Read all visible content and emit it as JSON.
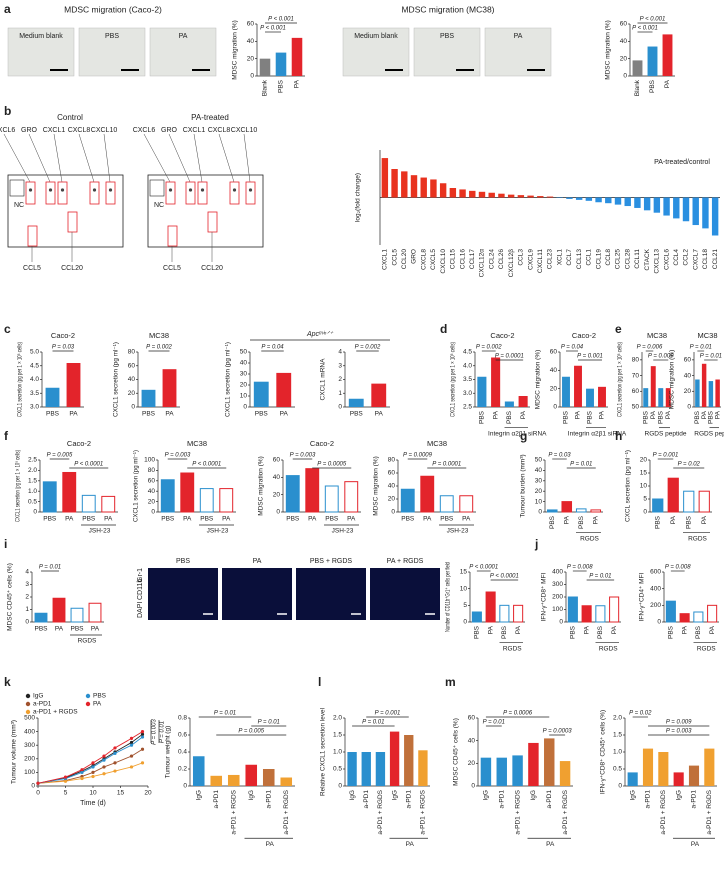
{
  "panel_labels": [
    "a",
    "b",
    "c",
    "d",
    "e",
    "f",
    "g",
    "h",
    "i",
    "j",
    "k",
    "l",
    "m"
  ],
  "images": {
    "a_titles": [
      "MDSC migration (Caco-2)",
      "MDSC migration (MC38)"
    ],
    "a_labels": [
      "Medium blank",
      "PBS",
      "PA",
      "Medium blank",
      "PBS",
      "PA"
    ],
    "b_titles": [
      "Control",
      "PA-treated"
    ],
    "b_labels": [
      "CXCL6",
      "GRO",
      "CXCL1",
      "CXCL8",
      "CXCL10"
    ],
    "b_nc": "NC",
    "b_bottom": [
      "CCL5",
      "CCL20"
    ],
    "i_labels": [
      "PBS",
      "PA",
      "PBS + RGDS",
      "PA + RGDS"
    ],
    "i_stain": [
      "DAPI",
      "CD11b",
      "Gr-1"
    ]
  },
  "chart_data": [
    {
      "type": "bar",
      "ylabel": "MDSC migration (%)",
      "categories": [
        "Blank",
        "PBS",
        "PA"
      ],
      "values": [
        20,
        27,
        44
      ],
      "colors": [
        "#808080",
        "#2a8fce",
        "#e3242b"
      ],
      "ylim": [
        0,
        60
      ],
      "yticks": [
        0,
        20,
        40,
        60
      ],
      "annotations": [
        "P < 0.001",
        "P < 0.001"
      ]
    },
    {
      "type": "bar",
      "ylabel": "MDSC migration (%)",
      "categories": [
        "Blank",
        "PBS",
        "PA"
      ],
      "values": [
        18,
        34,
        48
      ],
      "colors": [
        "#808080",
        "#2a8fce",
        "#e3242b"
      ],
      "ylim": [
        0,
        60
      ],
      "yticks": [
        0,
        20,
        40,
        60
      ],
      "annotations": [
        "P < 0.001",
        "P < 0.001"
      ]
    },
    {
      "type": "bar",
      "ylabel": "log₂(fold change)",
      "note": "PA-treated/control",
      "categories": [
        "CXCL1",
        "CCL5",
        "CCL20",
        "GRO",
        "CXCL8",
        "CXCL5",
        "CXCL10",
        "CCL15",
        "CCL16",
        "CCL17",
        "CXCL12α",
        "CCL24",
        "CCL26",
        "CXCL12β",
        "CCL3",
        "CXCL9",
        "CXCL11",
        "CCL23",
        "XCL1",
        "CCL7",
        "CCL13",
        "CCL1",
        "CCL19",
        "CCL8",
        "CCL25",
        "CCL28",
        "CCL11",
        "CTACK",
        "CXCL13",
        "CXCL6",
        "CCL4",
        "CCL2",
        "CXCL7",
        "CCL18",
        "CCL21"
      ],
      "values": [
        0.83,
        0.6,
        0.55,
        0.47,
        0.42,
        0.38,
        0.3,
        0.2,
        0.17,
        0.14,
        0.12,
        0.1,
        0.08,
        0.06,
        0.05,
        0.04,
        0.03,
        0.02,
        -0.01,
        -0.03,
        -0.05,
        -0.07,
        -0.1,
        -0.12,
        -0.15,
        -0.18,
        -0.22,
        -0.27,
        -0.32,
        -0.38,
        -0.44,
        -0.5,
        -0.58,
        -0.65,
        -0.8
      ],
      "color_pos": "#e8321e",
      "color_neg": "#2a8fe0",
      "ylim": [
        -1,
        1
      ]
    },
    {
      "type": "bar",
      "title": "Caco-2",
      "ylabel": "CXCL1 secretion (pg per 1 × 10⁵ cells)",
      "categories": [
        "PBS",
        "PA"
      ],
      "values": [
        3.7,
        4.6
      ],
      "colors": [
        "#2a8fce",
        "#e3242b"
      ],
      "ylim": [
        3,
        5
      ],
      "yticks": [
        {
          "value": 3,
          "label": "3.0"
        },
        3.5,
        {
          "value": 4,
          "label": "4.0"
        },
        4.5,
        {
          "value": 5,
          "label": "5.0"
        }
      ],
      "annotations": [
        "P = 0.03"
      ]
    },
    {
      "type": "bar",
      "title": "MC38",
      "ylabel": "CXCL1 secretion (pg ml⁻¹)",
      "categories": [
        "PBS",
        "PA"
      ],
      "values": [
        25,
        55
      ],
      "colors": [
        "#2a8fce",
        "#e3242b"
      ],
      "ylim": [
        0,
        80
      ],
      "yticks": [
        0,
        20,
        40,
        60,
        80
      ],
      "annotations": [
        "P = 0.002"
      ]
    },
    {
      "type": "bar",
      "supertitle": "Apcᵐⁱⁿᐟ⁺",
      "ylabel": "CXCL1 secretion (pg ml⁻¹)",
      "categories": [
        "PBS",
        "PA"
      ],
      "values": [
        23,
        31
      ],
      "colors": [
        "#2a8fce",
        "#e3242b"
      ],
      "ylim": [
        0,
        50
      ],
      "yticks": [
        0,
        10,
        20,
        30,
        40,
        50
      ],
      "annotations": [
        "P = 0.04"
      ]
    },
    {
      "type": "bar",
      "ylabel": "CXCL1 mRNA",
      "categories": [
        "PBS",
        "PA"
      ],
      "values": [
        0.6,
        1.7
      ],
      "colors": [
        "#2a8fce",
        "#e3242b"
      ],
      "ylim": [
        0,
        4
      ],
      "yticks": [
        0,
        1,
        2,
        3,
        4
      ],
      "annotations": [
        "P = 0.002"
      ]
    },
    {
      "type": "bar",
      "title": "Caco-2",
      "ylabel": "CXCL1 secretion (pg per 1 × 10⁵ cells)",
      "categories": [
        "PBS",
        "PA",
        "PBS",
        "PA"
      ],
      "values": [
        3.6,
        4.3,
        2.7,
        2.9
      ],
      "colors": [
        "#2a8fce",
        "#e3242b",
        "#2a8fce",
        "#e3242b"
      ],
      "ylim": [
        2.5,
        4.5
      ],
      "yticks": [
        2.5,
        {
          "value": 3,
          "label": "3.0"
        },
        3.5,
        {
          "value": 4,
          "label": "4.0"
        },
        4.5
      ],
      "annotations": [
        "P = 0.002",
        "P = 0.0001"
      ],
      "group_label": "Integrin α2β1 siRNA"
    },
    {
      "type": "bar",
      "title": "Caco-2",
      "ylabel": "MDSC migration (%)",
      "categories": [
        "PBS",
        "PA",
        "PBS",
        "PA"
      ],
      "values": [
        33,
        45,
        20,
        22
      ],
      "colors": [
        "#2a8fce",
        "#e3242b",
        "#2a8fce",
        "#e3242b"
      ],
      "ylim": [
        0,
        60
      ],
      "yticks": [
        0,
        20,
        40,
        60
      ],
      "annotations": [
        "P = 0.04",
        "P = 0.001"
      ],
      "group_label": "Integrin α2β1 siRNA"
    },
    {
      "type": "bar",
      "title": "MC38",
      "ylabel": "CXCL1 secretion (pg per 1 × 10⁵ cells)",
      "categories": [
        "PBS",
        "PA",
        "PBS",
        "PA"
      ],
      "values": [
        62,
        76,
        62,
        62
      ],
      "colors": [
        "#2a8fce",
        "#e3242b",
        "#2a8fce",
        "#e3242b"
      ],
      "ylim": [
        50,
        85
      ],
      "yticks": [
        50,
        60,
        70,
        80
      ],
      "annotations": [
        "P = 0.006",
        "P = 0.009"
      ],
      "group_label": "RGDS peptide"
    },
    {
      "type": "bar",
      "title": "MC38",
      "ylabel": "MDSC migration (%)",
      "categories": [
        "PBS",
        "PA",
        "PBS",
        "PA"
      ],
      "values": [
        35,
        55,
        33,
        35
      ],
      "colors": [
        "#2a8fce",
        "#e3242b",
        "#2a8fce",
        "#e3242b"
      ],
      "ylim": [
        0,
        70
      ],
      "yticks": [
        0,
        20,
        40,
        60
      ],
      "annotations": [
        "P = 0.01",
        "P = 0.01"
      ],
      "group_label": "RGDS peptide"
    },
    {
      "type": "bar",
      "title": "Caco-2",
      "ylabel": "CXCL1 secretion (pg per 1 × 10⁵ cells)",
      "categories": [
        "PBS",
        "PA",
        "PBS",
        "PA"
      ],
      "values": [
        1.45,
        1.9,
        0.8,
        0.75
      ],
      "colors": [
        "#2a8fce",
        "#e3242b",
        "#ffffff",
        "#ffffff"
      ],
      "edge_colors": [
        "#2a8fce",
        "#e3242b",
        "#2a8fce",
        "#e3242b"
      ],
      "ylim": [
        0,
        2.5
      ],
      "yticks": [
        0,
        0.5,
        {
          "value": 1,
          "label": "1.0"
        },
        1.5,
        {
          "value": 2,
          "label": "2.0"
        },
        2.5
      ],
      "annotations": [
        "P = 0.005",
        "P < 0.0001"
      ],
      "group_label": "JSH-23"
    },
    {
      "type": "bar",
      "title": "MC38",
      "ylabel": "CXCL1 secretion (pg ml⁻¹)",
      "categories": [
        "PBS",
        "PA",
        "PBS",
        "PA"
      ],
      "values": [
        62,
        75,
        45,
        45
      ],
      "colors": [
        "#2a8fce",
        "#e3242b",
        "#ffffff",
        "#ffffff"
      ],
      "edge_colors": [
        "#2a8fce",
        "#e3242b",
        "#2a8fce",
        "#e3242b"
      ],
      "ylim": [
        0,
        100
      ],
      "yticks": [
        0,
        20,
        40,
        60,
        80,
        100
      ],
      "annotations": [
        "P = 0.003",
        "P < 0.0001"
      ],
      "group_label": "JSH-23"
    },
    {
      "type": "bar",
      "title": "Caco-2",
      "ylabel": "MDSC migration (%)",
      "categories": [
        "PBS",
        "PA",
        "PBS",
        "PA"
      ],
      "values": [
        42,
        50,
        30,
        35
      ],
      "colors": [
        "#2a8fce",
        "#e3242b",
        "#ffffff",
        "#ffffff"
      ],
      "edge_colors": [
        "#2a8fce",
        "#e3242b",
        "#2a8fce",
        "#e3242b"
      ],
      "ylim": [
        0,
        60
      ],
      "yticks": [
        0,
        20,
        40,
        60
      ],
      "annotations": [
        "P = 0.003",
        "P = 0.0005"
      ],
      "group_label": "JSH-23"
    },
    {
      "type": "bar",
      "title": "MC38",
      "ylabel": "MDSC migration (%)",
      "categories": [
        "PBS",
        "PA",
        "PBS",
        "PA"
      ],
      "values": [
        35,
        55,
        25,
        25
      ],
      "colors": [
        "#2a8fce",
        "#e3242b",
        "#ffffff",
        "#ffffff"
      ],
      "edge_colors": [
        "#2a8fce",
        "#e3242b",
        "#2a8fce",
        "#e3242b"
      ],
      "ylim": [
        0,
        80
      ],
      "yticks": [
        0,
        20,
        40,
        60,
        80
      ],
      "annotations": [
        "P = 0.0009",
        "P = 0.0001"
      ],
      "group_label": "JSH-23"
    },
    {
      "type": "bar",
      "ylabel": "Tumour burden (mm³)",
      "categories": [
        "PBS",
        "PA",
        "PBS",
        "PA"
      ],
      "values": [
        2,
        10,
        3,
        2
      ],
      "colors": [
        "#2a8fce",
        "#e3242b",
        "#ffffff",
        "#ffffff"
      ],
      "edge_colors": [
        "#2a8fce",
        "#e3242b",
        "#2a8fce",
        "#e3242b"
      ],
      "ylim": [
        0,
        50
      ],
      "yticks": [
        0,
        10,
        20,
        30,
        40,
        50
      ],
      "annotations": [
        "P = 0.03",
        "P = 0.01"
      ],
      "group_label": "RGDS"
    },
    {
      "type": "bar",
      "ylabel": "CXCL secretion (pg ml⁻¹)",
      "categories": [
        "PBS",
        "PA",
        "PBS",
        "PA"
      ],
      "values": [
        5,
        13,
        8,
        8
      ],
      "colors": [
        "#2a8fce",
        "#e3242b",
        "#ffffff",
        "#ffffff"
      ],
      "edge_colors": [
        "#2a8fce",
        "#e3242b",
        "#2a8fce",
        "#e3242b"
      ],
      "ylim": [
        0,
        20
      ],
      "yticks": [
        0,
        5,
        10,
        15,
        20
      ],
      "annotations": [
        "P = 0.001",
        "P = 0.02"
      ],
      "group_label": "RGDS"
    },
    {
      "type": "bar",
      "ylabel": "MDSC CD45⁺ cells (%)",
      "categories": [
        "PBS",
        "PA",
        "PBS",
        "PA"
      ],
      "values": [
        0.7,
        1.9,
        1.1,
        1.5
      ],
      "colors": [
        "#2a8fce",
        "#e3242b",
        "#ffffff",
        "#ffffff"
      ],
      "edge_colors": [
        "#2a8fce",
        "#e3242b",
        "#2a8fce",
        "#e3242b"
      ],
      "ylim": [
        0,
        4
      ],
      "yticks": [
        0,
        1,
        2,
        3,
        4
      ],
      "annotations": [
        "P = 0.01"
      ],
      "group_label": "RGDS"
    },
    {
      "type": "bar",
      "ylabel": "Number of CD11b⁺Gr1⁺ cells per field",
      "categories": [
        "PBS",
        "PA",
        "PBS",
        "PA"
      ],
      "values": [
        3,
        9,
        5,
        5
      ],
      "colors": [
        "#2a8fce",
        "#e3242b",
        "#ffffff",
        "#ffffff"
      ],
      "edge_colors": [
        "#2a8fce",
        "#e3242b",
        "#2a8fce",
        "#e3242b"
      ],
      "ylim": [
        0,
        15
      ],
      "yticks": [
        0,
        5,
        10,
        15
      ],
      "annotations": [
        "P < 0.0001",
        "P < 0.0001"
      ],
      "group_label": "RGDS"
    },
    {
      "type": "bar",
      "ylabel": "IFN-γ⁺CD8⁺ MFI",
      "categories": [
        "PBS",
        "PA",
        "PBS",
        "PA"
      ],
      "values": [
        200,
        130,
        130,
        200
      ],
      "colors": [
        "#2a8fce",
        "#e3242b",
        "#ffffff",
        "#ffffff"
      ],
      "edge_colors": [
        "#2a8fce",
        "#e3242b",
        "#2a8fce",
        "#e3242b"
      ],
      "ylim": [
        0,
        400
      ],
      "yticks": [
        0,
        100,
        200,
        300,
        400
      ],
      "annotations": [
        "P = 0.008",
        "P = 0.01"
      ],
      "group_label": "RGDS"
    },
    {
      "type": "bar",
      "ylabel": "IFN-γ⁺CD4⁺ MFI",
      "categories": [
        "PBS",
        "PA",
        "PBS",
        "PA"
      ],
      "values": [
        250,
        100,
        120,
        200
      ],
      "colors": [
        "#2a8fce",
        "#e3242b",
        "#ffffff",
        "#ffffff"
      ],
      "edge_colors": [
        "#2a8fce",
        "#e3242b",
        "#2a8fce",
        "#e3242b"
      ],
      "ylim": [
        0,
        600
      ],
      "yticks": [
        0,
        200,
        400,
        600
      ],
      "annotations": [
        "P = 0.008"
      ],
      "group_label": "RGDS"
    },
    {
      "type": "line",
      "ylabel": "Tumour volume (mm³)",
      "xlabel": "Time (d)",
      "x": [
        0,
        5,
        8,
        10,
        12,
        14,
        17,
        19
      ],
      "xlim": [
        0,
        20
      ],
      "xticks": [
        0,
        5,
        10,
        15,
        20
      ],
      "ylim": [
        0,
        500
      ],
      "yticks": [
        0,
        100,
        200,
        300,
        400,
        500
      ],
      "annotations": [
        "P = 0.003",
        "P = 0.01"
      ],
      "series": [
        {
          "name": "IgG",
          "color": "#222222",
          "values": [
            20,
            60,
            110,
            150,
            200,
            250,
            320,
            380
          ]
        },
        {
          "name": "a-PD1",
          "color": "#a0522d",
          "values": [
            20,
            40,
            70,
            100,
            140,
            170,
            220,
            270
          ]
        },
        {
          "name": "a-PD1 + RGDS",
          "color": "#f0a030",
          "values": [
            20,
            35,
            55,
            70,
            90,
            110,
            140,
            170
          ]
        },
        {
          "name": "PBS",
          "color": "#2a8fce",
          "values": [
            20,
            55,
            100,
            140,
            190,
            240,
            300,
            360
          ]
        },
        {
          "name": "PA",
          "color": "#e3242b",
          "values": [
            20,
            65,
            120,
            170,
            220,
            280,
            350,
            400
          ]
        }
      ]
    },
    {
      "type": "bar",
      "ylabel": "Tumour weight (g)",
      "categories": [
        "IgG",
        "a-PD1",
        "a-PD1 + RGDS",
        "IgG",
        "a-PD1",
        "a-PD1 + RGDS"
      ],
      "values": [
        0.35,
        0.12,
        0.13,
        0.25,
        0.2,
        0.1
      ],
      "colors": [
        "#2a8fce",
        "#f0a030",
        "#f0a030",
        "#e3242b",
        "#c0703a",
        "#f0a030"
      ],
      "ylim": [
        0,
        0.8
      ],
      "yticks": [
        0,
        0.2,
        0.4,
        0.6,
        0.8
      ],
      "annotations": [
        "P = 0.01",
        "P = 0.01",
        "P = 0.005"
      ],
      "group_label": "PA"
    },
    {
      "type": "bar",
      "ylabel": "Relative CXCL1 secretion level",
      "categories": [
        "IgG",
        "a-PD1",
        "a-PD1 + RGDS",
        "IgG",
        "a-PD1",
        "a-PD1 + RGDS"
      ],
      "values": [
        1.0,
        1.0,
        1.0,
        1.6,
        1.5,
        1.05
      ],
      "colors": [
        "#2a8fce",
        "#2a8fce",
        "#2a8fce",
        "#e3242b",
        "#c0703a",
        "#f0a030"
      ],
      "ylim": [
        0,
        2
      ],
      "yticks": [
        0,
        0.5,
        {
          "value": 1,
          "label": "1.0"
        },
        1.5,
        {
          "value": 2,
          "label": "2.0"
        }
      ],
      "annotations": [
        "P = 0.001",
        "P = 0.01"
      ],
      "group_label": "PA"
    },
    {
      "type": "bar",
      "ylabel": "MDSC CD45⁺ cells (%)",
      "categories": [
        "IgG",
        "a-PD1",
        "a-PD1 + RGDS",
        "IgG",
        "a-PD1",
        "a-PD1 + RGDS"
      ],
      "values": [
        25,
        25,
        27,
        38,
        42,
        22
      ],
      "colors": [
        "#2a8fce",
        "#2a8fce",
        "#2a8fce",
        "#e3242b",
        "#c0703a",
        "#f0a030"
      ],
      "ylim": [
        0,
        60
      ],
      "yticks": [
        0,
        20,
        40,
        60
      ],
      "annotations": [
        "P = 0.0006",
        "P = 0.01",
        "P = 0.0003"
      ],
      "group_label": "PA"
    },
    {
      "type": "bar",
      "ylabel": "IFN-γ⁺CD8⁺ CD45⁺ cells (%)",
      "categories": [
        "IgG",
        "a-PD1",
        "a-PD1 + RGDS",
        "IgG",
        "a-PD1",
        "a-PD1 + RGDS"
      ],
      "values": [
        0.4,
        1.1,
        1.0,
        0.4,
        0.6,
        1.1
      ],
      "colors": [
        "#2a8fce",
        "#f0a030",
        "#f0a030",
        "#e3242b",
        "#c0703a",
        "#f0a030"
      ],
      "ylim": [
        0,
        2
      ],
      "yticks": [
        0,
        0.5,
        {
          "value": 1,
          "label": "1.0"
        },
        1.5,
        {
          "value": 2,
          "label": "2.0"
        }
      ],
      "annotations": [
        "P = 0.02",
        "P = 0.009",
        "P = 0.003"
      ],
      "group_label": "PA"
    }
  ]
}
